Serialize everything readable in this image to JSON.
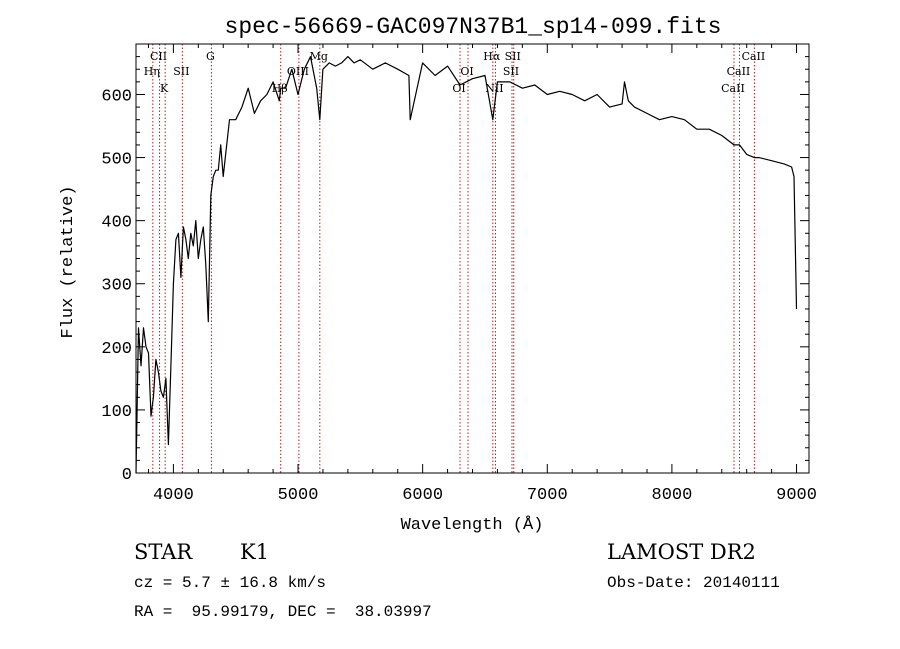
{
  "chart_data": {
    "type": "line",
    "title": "spec-56669-GAC097N37B1_sp14-099.fits",
    "xlabel": "Wavelength (Å)",
    "ylabel": "Flux (relative)",
    "xlim": [
      3700,
      9100
    ],
    "ylim": [
      0,
      680
    ],
    "xticks": [
      4000,
      5000,
      6000,
      7000,
      8000,
      9000
    ],
    "yticks": [
      0,
      100,
      200,
      300,
      400,
      500,
      600
    ],
    "line_color": "#000000",
    "marker_color": "#b22222",
    "series": [
      {
        "x": [
          3700,
          3720,
          3740,
          3760,
          3780,
          3800,
          3820,
          3840,
          3860,
          3880,
          3900,
          3920,
          3940,
          3960,
          3980,
          4000,
          4020,
          4040,
          4060,
          4080,
          4100,
          4120,
          4140,
          4160,
          4180,
          4200,
          4220,
          4240,
          4260,
          4280,
          4300,
          4320,
          4340,
          4360,
          4380,
          4400,
          4450,
          4500,
          4550,
          4600,
          4650,
          4700,
          4750,
          4800,
          4850,
          4861,
          4900,
          4950,
          5000,
          5050,
          5100,
          5150,
          5175,
          5200,
          5250,
          5300,
          5350,
          5400,
          5450,
          5500,
          5600,
          5700,
          5800,
          5890,
          5900,
          6000,
          6100,
          6200,
          6300,
          6400,
          6500,
          6563,
          6600,
          6700,
          6800,
          6900,
          7000,
          7100,
          7200,
          7300,
          7400,
          7500,
          7600,
          7620,
          7650,
          7700,
          7800,
          7900,
          8000,
          8100,
          8200,
          8300,
          8400,
          8498,
          8542,
          8600,
          8662,
          8700,
          8800,
          8900,
          8960,
          8980,
          9000
        ],
        "values": [
          0,
          230,
          170,
          230,
          200,
          190,
          90,
          120,
          180,
          160,
          130,
          120,
          150,
          45,
          170,
          300,
          370,
          380,
          310,
          390,
          370,
          340,
          380,
          360,
          400,
          340,
          370,
          390,
          330,
          240,
          440,
          470,
          480,
          480,
          520,
          470,
          560,
          560,
          580,
          610,
          570,
          590,
          600,
          620,
          590,
          610,
          610,
          640,
          600,
          640,
          660,
          610,
          560,
          640,
          650,
          645,
          650,
          660,
          650,
          655,
          640,
          650,
          640,
          630,
          560,
          650,
          630,
          645,
          615,
          625,
          630,
          560,
          620,
          620,
          610,
          615,
          600,
          605,
          600,
          590,
          600,
          580,
          585,
          620,
          590,
          580,
          570,
          560,
          565,
          560,
          545,
          545,
          535,
          520,
          520,
          505,
          500,
          500,
          495,
          490,
          485,
          470,
          260
        ]
      }
    ],
    "line_markers": [
      {
        "label": "Hη",
        "x": 3835
      },
      {
        "label": "CII",
        "x": 3889
      },
      {
        "label": "K",
        "x": 3934
      },
      {
        "label": "SII",
        "x": 4072
      },
      {
        "label": "G",
        "x": 4305
      },
      {
        "label": "Hβ",
        "x": 4861
      },
      {
        "label": "OIII",
        "x": 5007
      },
      {
        "label": "Mg",
        "x": 5175
      },
      {
        "label": "OI",
        "x": 6300
      },
      {
        "label": "OI",
        "x": 6364
      },
      {
        "label": "Hα",
        "x": 6563
      },
      {
        "label": "NII",
        "x": 6584
      },
      {
        "label": "SII",
        "x": 6717
      },
      {
        "label": "SII",
        "x": 6731
      },
      {
        "label": "CaII",
        "x": 8498
      },
      {
        "label": "CaII",
        "x": 8542
      },
      {
        "label": "CaII",
        "x": 8662
      }
    ]
  },
  "info": {
    "class": "STAR",
    "subclass": "K1",
    "survey": "LAMOST DR2",
    "cz": "cz = 5.7 ± 16.8 km/s",
    "obs_date": "Obs-Date: 20140111",
    "coords": "RA =  95.99179, DEC =  38.03997"
  }
}
